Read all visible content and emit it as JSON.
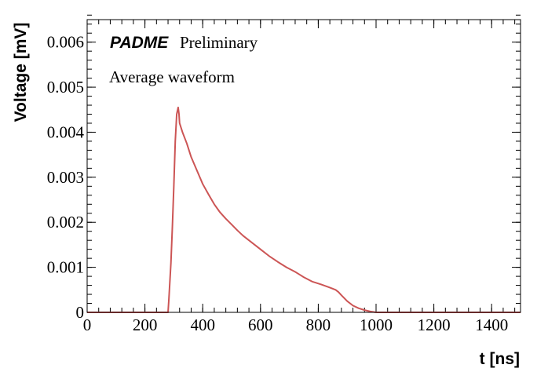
{
  "chart_data": {
    "type": "line",
    "title": "",
    "xlabel": "t [ns]",
    "ylabel": "Voltage [mV]",
    "xlim": [
      0,
      1500
    ],
    "ylim": [
      0,
      0.0065
    ],
    "x_ticks": [
      0,
      200,
      400,
      600,
      800,
      1000,
      1200,
      1400
    ],
    "x_tick_labels": [
      "0",
      "200",
      "400",
      "600",
      "800",
      "1000",
      "1200",
      "1400"
    ],
    "y_ticks": [
      0,
      0.001,
      0.002,
      0.003,
      0.004,
      0.005,
      0.006
    ],
    "y_tick_labels": [
      "0",
      "0.001",
      "0.002",
      "0.003",
      "0.004",
      "0.005",
      "0.006"
    ],
    "x_minor_step": 40,
    "y_minor_step": 0.0002,
    "grid": false,
    "legend": "none",
    "annotations": {
      "brand": "PADME",
      "status": "Preliminary",
      "description": "Average waveform"
    },
    "series": [
      {
        "name": "Average waveform",
        "color": "#cc5555",
        "x": [
          0,
          200,
          270,
          280,
          283,
          290,
          295,
          300,
          305,
          310,
          315,
          318,
          320,
          325,
          330,
          345,
          360,
          380,
          400,
          420,
          440,
          460,
          480,
          500,
          520,
          540,
          560,
          580,
          600,
          630,
          660,
          690,
          720,
          750,
          780,
          810,
          840,
          860,
          870,
          880,
          900,
          920,
          940,
          960,
          980,
          1000,
          1100,
          1200,
          1300,
          1400,
          1500
        ],
        "y": [
          0,
          0,
          0,
          0,
          0.0003,
          0.0011,
          0.0019,
          0.0028,
          0.0038,
          0.0044,
          0.00455,
          0.0044,
          0.0042,
          0.0041,
          0.004,
          0.00375,
          0.00345,
          0.00315,
          0.00285,
          0.00262,
          0.0024,
          0.00222,
          0.00208,
          0.00195,
          0.00182,
          0.0017,
          0.0016,
          0.0015,
          0.0014,
          0.00125,
          0.00112,
          0.001,
          0.0009,
          0.00078,
          0.00068,
          0.00062,
          0.00055,
          0.0005,
          0.00045,
          0.00038,
          0.00025,
          0.00015,
          9e-05,
          5e-05,
          2e-05,
          0,
          0,
          0,
          0,
          0,
          0
        ]
      }
    ]
  }
}
